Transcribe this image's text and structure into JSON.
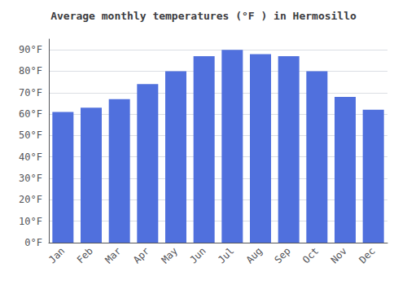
{
  "chart_data": {
    "type": "bar",
    "title": "Average monthly temperatures (°F ) in Hermosillo",
    "categories": [
      "Jan",
      "Feb",
      "Mar",
      "Apr",
      "May",
      "Jun",
      "Jul",
      "Aug",
      "Sep",
      "Oct",
      "Nov",
      "Dec"
    ],
    "values": [
      61,
      63,
      67,
      74,
      80,
      87,
      90,
      88,
      87,
      80,
      68,
      62
    ],
    "ylim": [
      0,
      95
    ],
    "yticks": [
      {
        "value": 0,
        "label": "0°F"
      },
      {
        "value": 10,
        "label": "10°F"
      },
      {
        "value": 20,
        "label": "20°F"
      },
      {
        "value": 30,
        "label": "30°F"
      },
      {
        "value": 40,
        "label": "40°F"
      },
      {
        "value": 50,
        "label": "50°F"
      },
      {
        "value": 60,
        "label": "60°F"
      },
      {
        "value": 70,
        "label": "70°F"
      },
      {
        "value": 80,
        "label": "80°F"
      },
      {
        "value": 90,
        "label": "90°F"
      }
    ],
    "grid": true
  }
}
